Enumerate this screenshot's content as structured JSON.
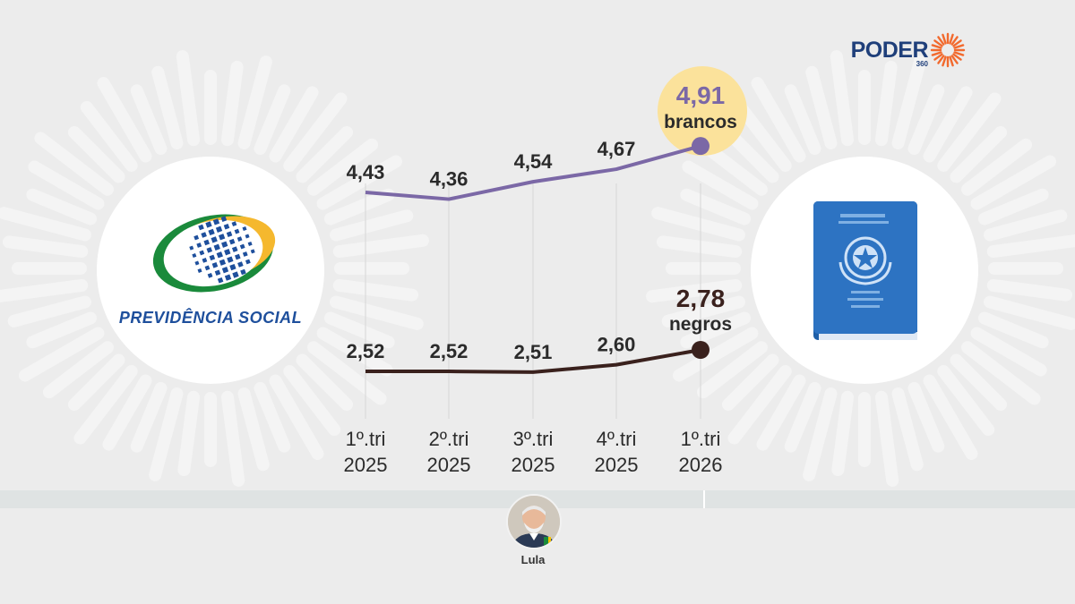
{
  "brand": {
    "name": "PODER",
    "sub": "360"
  },
  "left_logo": {
    "text": "PREVIDÊNCIA SOCIAL",
    "icon": "previdencia-logo-icon"
  },
  "right_logo": {
    "icon": "work-card-booklet-icon"
  },
  "person": {
    "name": "Lula"
  },
  "colors": {
    "brancos": "#7b68a6",
    "negros": "#3a211d",
    "highlight": "#fbe29b",
    "brand": "#1f3f7a",
    "brand_accent": "#f26a2e"
  },
  "chart_data": {
    "type": "line",
    "categories": [
      "1º.tri 2025",
      "2º.tri 2025",
      "3º.tri 2025",
      "4º.tri 2025",
      "1º.tri 2026"
    ],
    "category_lines": [
      [
        "1º.tri",
        "2025"
      ],
      [
        "2º.tri",
        "2025"
      ],
      [
        "3º.tri",
        "2025"
      ],
      [
        "4º.tri",
        "2025"
      ],
      [
        "1º.tri",
        "2026"
      ]
    ],
    "series": [
      {
        "name": "brancos",
        "values": [
          4.43,
          4.36,
          4.54,
          4.67,
          4.91
        ],
        "labels": [
          "4,43",
          "4,36",
          "4,54",
          "4,67",
          "4,91"
        ]
      },
      {
        "name": "negros",
        "values": [
          2.52,
          2.52,
          2.51,
          2.6,
          2.78
        ],
        "labels": [
          "2,52",
          "2,52",
          "2,51",
          "2,60",
          "2,78"
        ]
      }
    ],
    "grid": "vertical"
  }
}
